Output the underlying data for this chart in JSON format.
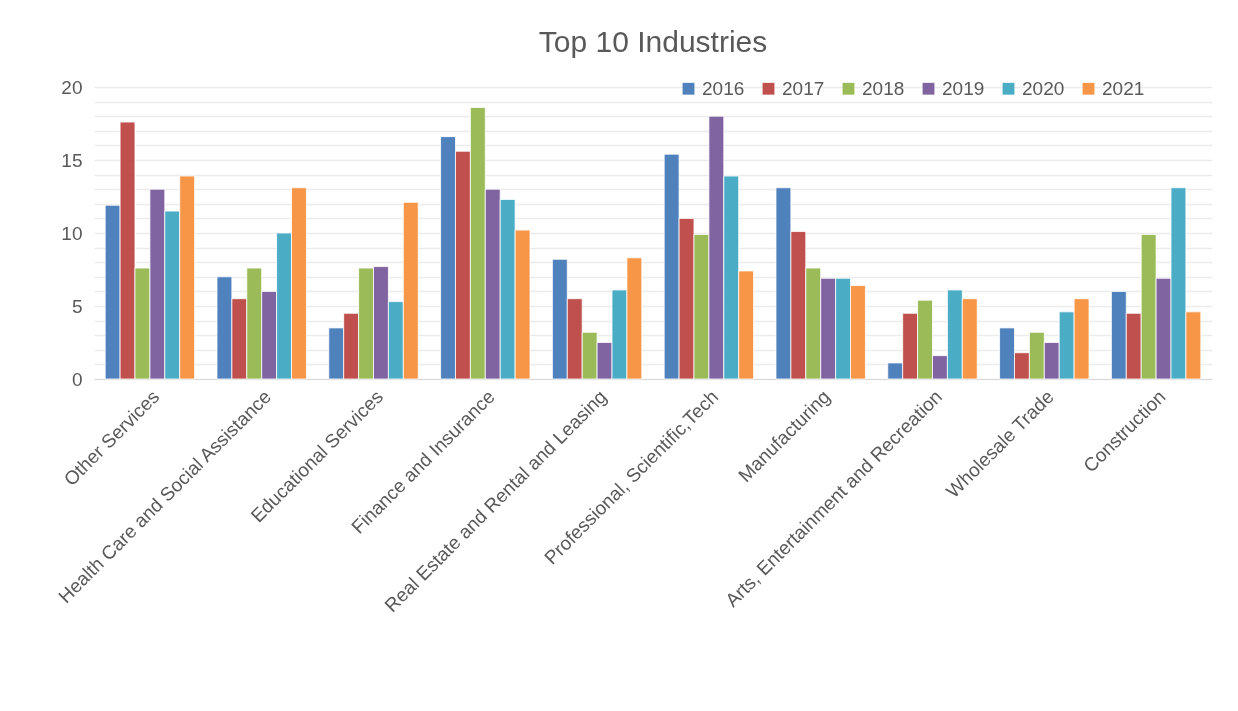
{
  "chart_data": {
    "type": "bar",
    "title": "Top 10 Industries",
    "categories": [
      "Other Services",
      "Health Care and Social Assistance",
      "Educational Services",
      "Finance and Insurance",
      "Real Estate and Rental and Leasing",
      "Professional, Scientific,Tech",
      "Manufacturing",
      "Arts, Entertainment and Recreation",
      "Wholesale Trade",
      "Construction"
    ],
    "series": [
      {
        "name": "2016",
        "color": "#4f81bd",
        "values": [
          11.9,
          7.0,
          3.5,
          16.6,
          8.2,
          15.4,
          13.1,
          1.1,
          3.5,
          6.0
        ]
      },
      {
        "name": "2017",
        "color": "#c0504d",
        "values": [
          17.6,
          5.5,
          4.5,
          15.6,
          5.5,
          11.0,
          10.1,
          4.5,
          1.8,
          4.5
        ]
      },
      {
        "name": "2018",
        "color": "#9bbb59",
        "values": [
          7.6,
          7.6,
          7.6,
          18.6,
          3.2,
          9.9,
          7.6,
          5.4,
          3.2,
          9.9
        ]
      },
      {
        "name": "2019",
        "color": "#8064a2",
        "values": [
          13.0,
          6.0,
          7.7,
          13.0,
          2.5,
          18.0,
          6.9,
          1.6,
          2.5,
          6.9
        ]
      },
      {
        "name": "2020",
        "color": "#4bacc6",
        "values": [
          11.5,
          10.0,
          5.3,
          12.3,
          6.1,
          13.9,
          6.9,
          6.1,
          4.6,
          13.1
        ]
      },
      {
        "name": "2021",
        "color": "#f79646",
        "values": [
          13.9,
          13.1,
          12.1,
          10.2,
          8.3,
          7.4,
          6.4,
          5.5,
          5.5,
          4.6
        ]
      }
    ],
    "ylim": [
      0,
      20
    ],
    "yticks": [
      0,
      {
        "value": 1,
        "label": null
      },
      {
        "value": 2,
        "label": null
      },
      {
        "value": 3,
        "label": null
      },
      {
        "value": 4,
        "label": null
      },
      5,
      {
        "value": 6,
        "label": null
      },
      {
        "value": 7,
        "label": null
      },
      {
        "value": 8,
        "label": null
      },
      {
        "value": 9,
        "label": null
      },
      10,
      {
        "value": 11,
        "label": null
      },
      {
        "value": 12,
        "label": null
      },
      {
        "value": 13,
        "label": null
      },
      {
        "value": 14,
        "label": null
      },
      15,
      {
        "value": 16,
        "label": null
      },
      {
        "value": 17,
        "label": null
      },
      {
        "value": 18,
        "label": null
      },
      {
        "value": 19,
        "label": null
      },
      20
    ],
    "grid": "y",
    "legend": "top right"
  }
}
